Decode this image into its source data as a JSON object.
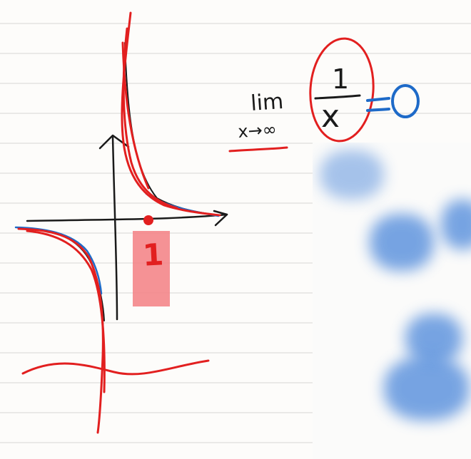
{
  "note": {
    "limit_word": "lim",
    "limit_subscript": "x→∞",
    "fraction_numerator": "1",
    "fraction_denominator": "x",
    "equals_sign": "=",
    "result": "0",
    "axis_marker_label": "1"
  },
  "colors": {
    "paper": "#fdfcfa",
    "rule_line": "#d8d6d4",
    "ink_black": "#1a1a1a",
    "ink_red": "#e21f1f",
    "ink_blue": "#1e6ac8",
    "highlight": "#f4868a"
  }
}
